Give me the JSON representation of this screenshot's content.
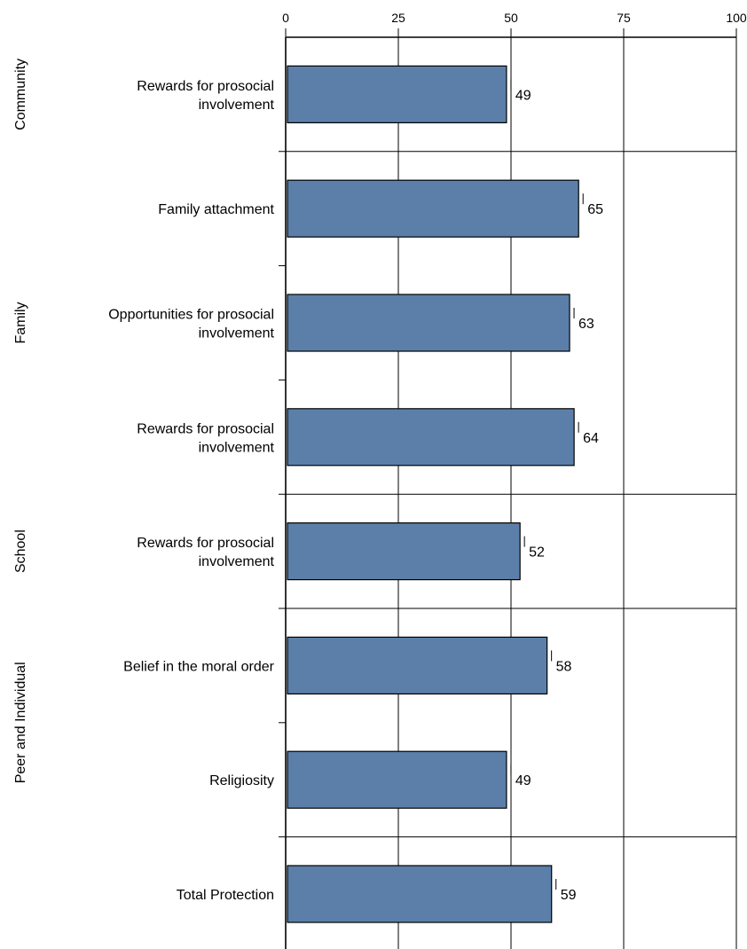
{
  "chart_data": {
    "type": "bar",
    "orientation": "horizontal",
    "xlim": [
      0,
      100
    ],
    "xticks": [
      "0",
      "25",
      "50",
      "75",
      "100"
    ],
    "grid": true,
    "bar_color": "#5b7fa8",
    "groups": [
      {
        "name": "Community",
        "items": [
          {
            "label": [
              "Rewards for prosocial",
              "involvement"
            ],
            "value": 49
          }
        ]
      },
      {
        "name": "Family",
        "items": [
          {
            "label": [
              "Family attachment"
            ],
            "value": 65
          },
          {
            "label": [
              "Opportunities for prosocial",
              "involvement"
            ],
            "value": 63
          },
          {
            "label": [
              "Rewards for prosocial",
              "involvement"
            ],
            "value": 64
          }
        ]
      },
      {
        "name": "School",
        "items": [
          {
            "label": [
              "Rewards for prosocial",
              "involvement"
            ],
            "value": 52
          }
        ]
      },
      {
        "name": "Peer and Individual",
        "items": [
          {
            "label": [
              "Belief in the moral order"
            ],
            "value": 58
          },
          {
            "label": [
              "Religiosity"
            ],
            "value": 49
          }
        ]
      },
      {
        "name": "",
        "items": [
          {
            "label": [
              "Total Protection"
            ],
            "value": 59
          }
        ]
      }
    ]
  }
}
